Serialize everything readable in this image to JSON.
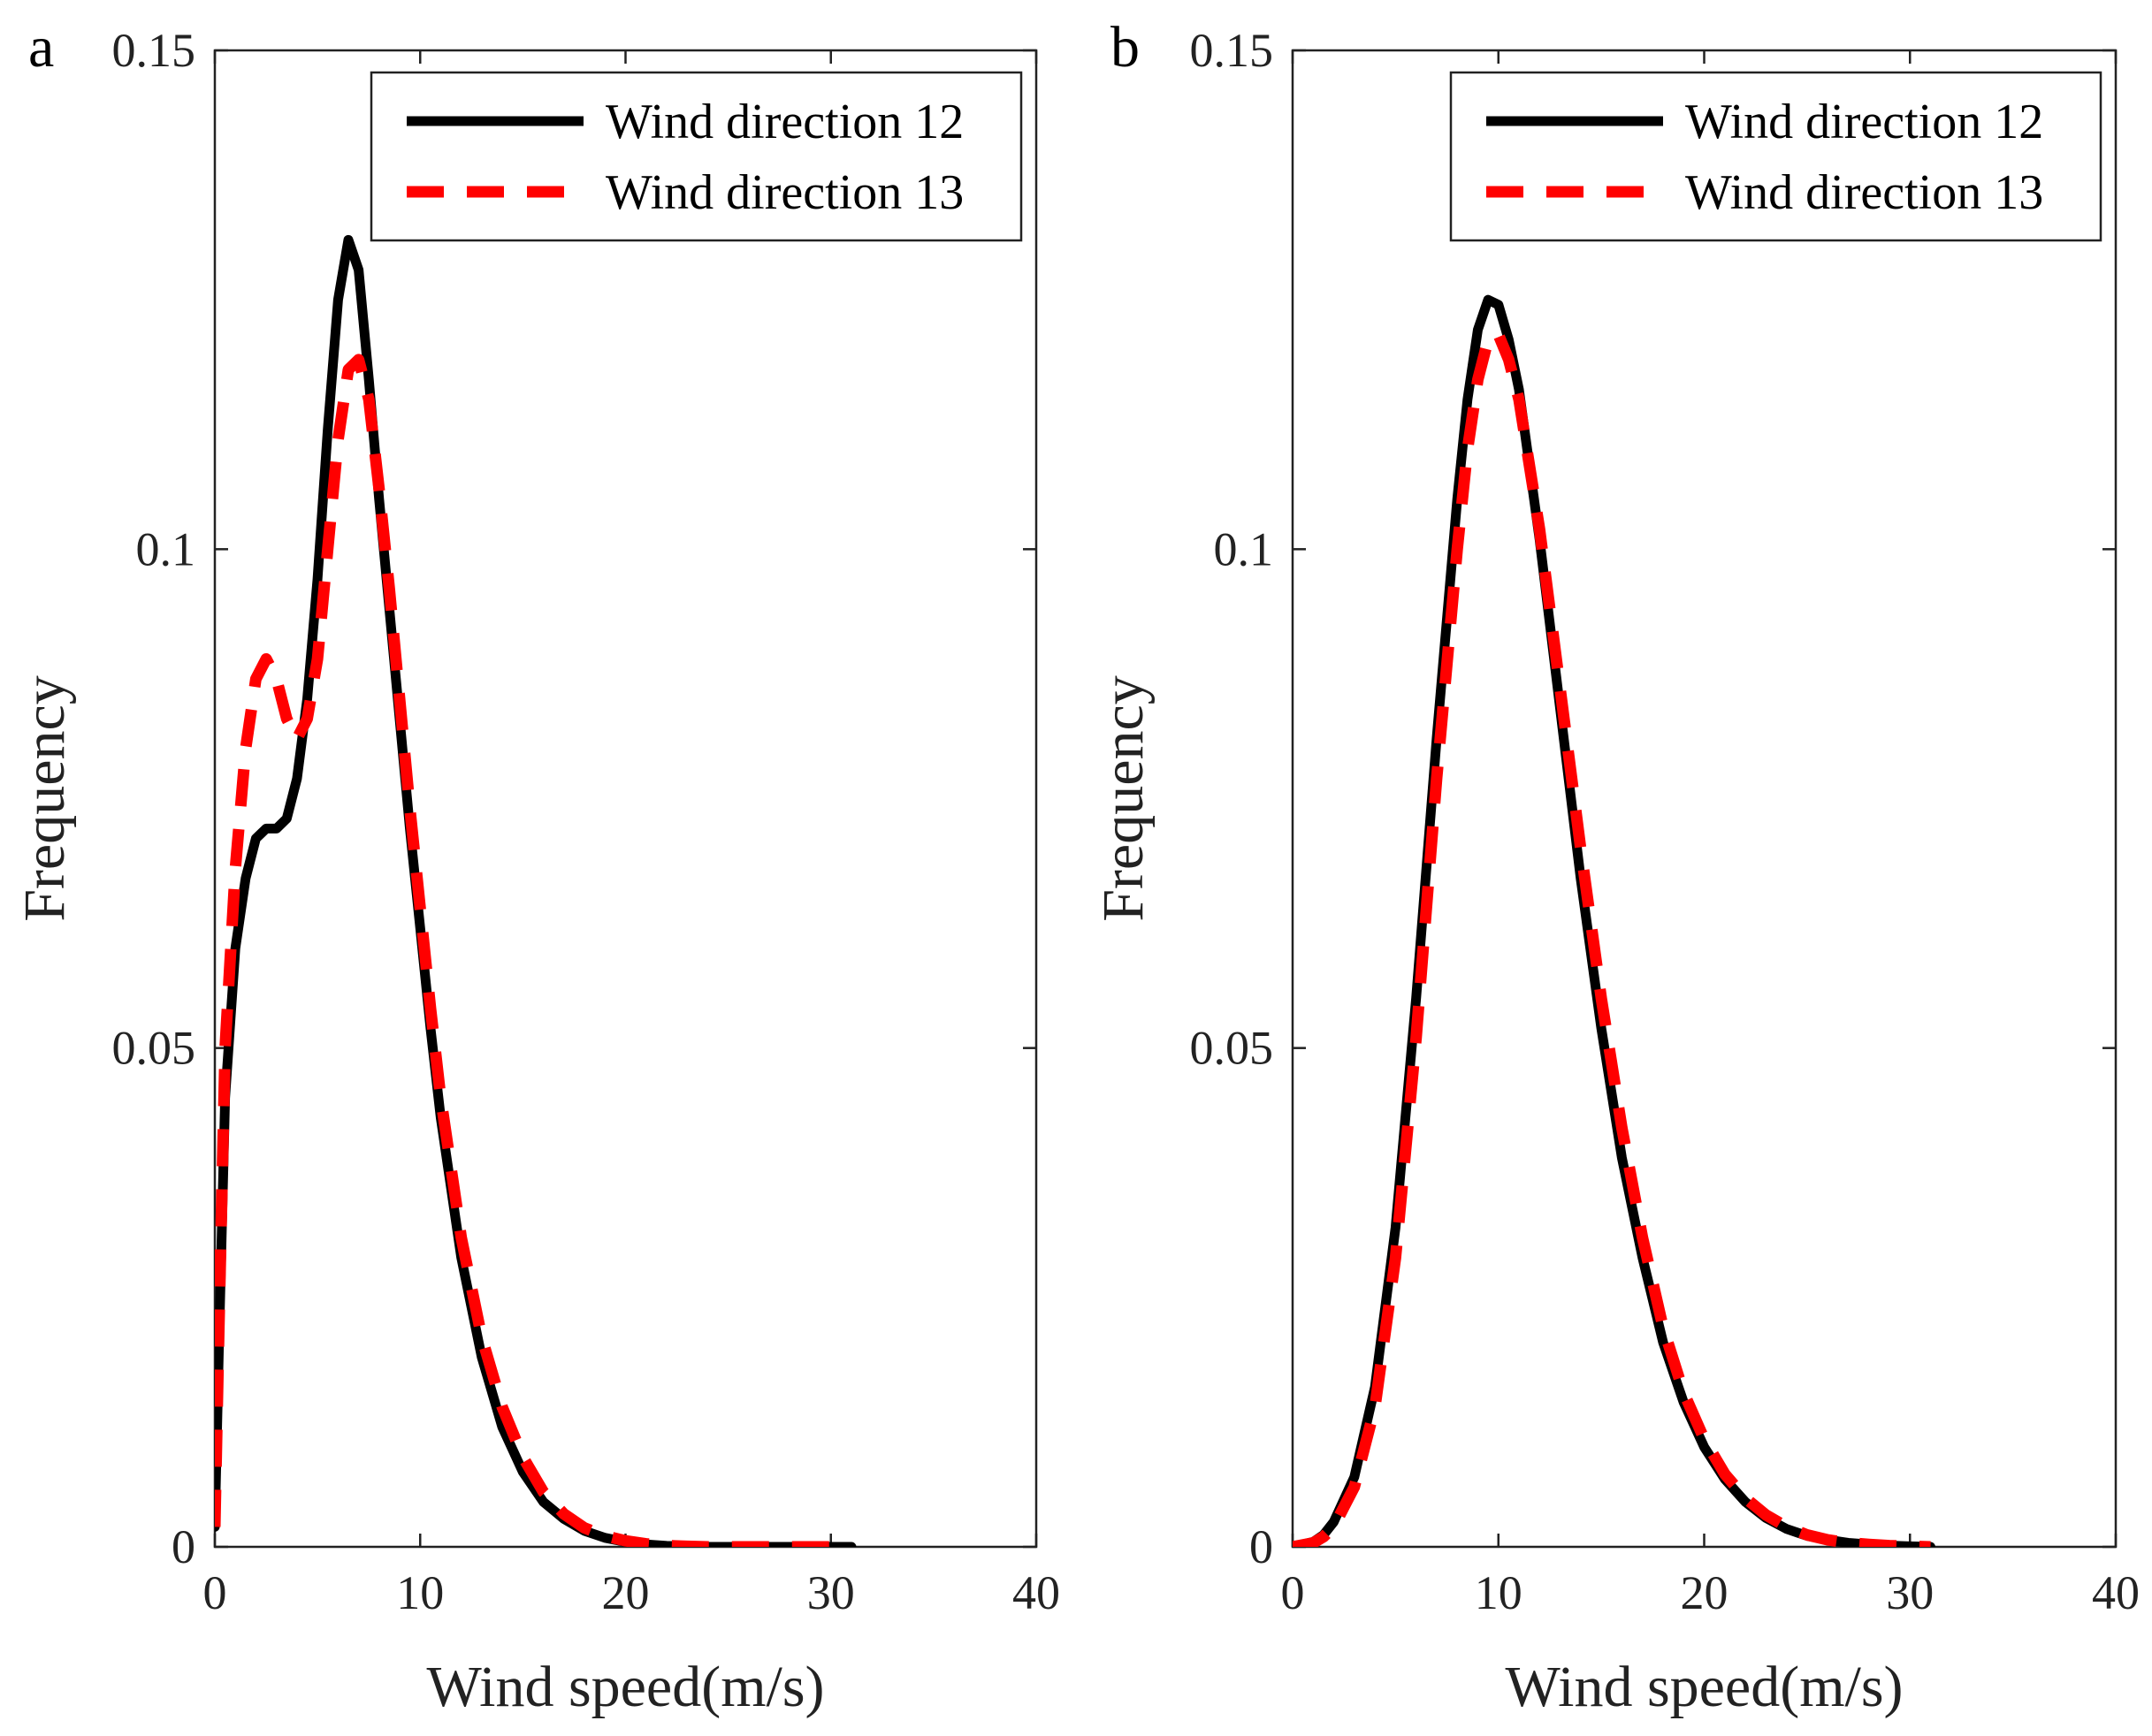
{
  "chart_data": [
    {
      "type": "line",
      "panel_label": "a",
      "xlabel": "Wind speed(m/s)",
      "ylabel": "Frequency",
      "xlim": [
        0,
        40
      ],
      "ylim": [
        0,
        0.15
      ],
      "xticks": [
        0,
        10,
        20,
        30,
        40
      ],
      "xtick_labels": [
        "0",
        "10",
        "20",
        "30",
        "40"
      ],
      "yticks": [
        0,
        0.05,
        0.1,
        0.15
      ],
      "ytick_labels": [
        "0",
        "0.05",
        "0.1",
        "0.15"
      ],
      "legend_position": "top-right",
      "series": [
        {
          "name": "Wind direction 12",
          "color": "#000000",
          "style": "solid",
          "x": [
            0,
            0.2,
            0.5,
            1,
            1.5,
            2,
            2.5,
            3,
            3.5,
            4,
            4.5,
            5,
            5.5,
            6,
            6.5,
            7,
            7.5,
            8,
            8.5,
            9,
            9.5,
            10,
            10.5,
            11,
            11.5,
            12,
            13,
            14,
            15,
            16,
            17,
            18,
            19,
            20,
            21,
            22,
            23,
            24,
            26,
            28,
            30,
            31
          ],
          "y": [
            0.002,
            0.02,
            0.045,
            0.06,
            0.067,
            0.071,
            0.072,
            0.072,
            0.073,
            0.077,
            0.085,
            0.097,
            0.112,
            0.125,
            0.131,
            0.128,
            0.117,
            0.105,
            0.094,
            0.083,
            0.072,
            0.062,
            0.052,
            0.043,
            0.036,
            0.029,
            0.019,
            0.012,
            0.0075,
            0.0045,
            0.0028,
            0.0016,
            0.0009,
            0.0005,
            0.00025,
            0.0001,
            5e-05,
            0,
            0,
            0,
            0,
            0
          ]
        },
        {
          "name": "Wind direction 13",
          "color": "#ff0000",
          "style": "dashed",
          "x": [
            0,
            0.2,
            0.5,
            1,
            1.5,
            2,
            2.5,
            3,
            3.5,
            4,
            4.5,
            5,
            5.5,
            6,
            6.5,
            7,
            7.5,
            8,
            8.5,
            9,
            9.5,
            10,
            10.5,
            11,
            11.5,
            12,
            13,
            14,
            15,
            16,
            17,
            18,
            19,
            20,
            21,
            22,
            23,
            24,
            26,
            28,
            30,
            31
          ],
          "y": [
            0.002,
            0.022,
            0.05,
            0.068,
            0.08,
            0.087,
            0.089,
            0.087,
            0.083,
            0.081,
            0.083,
            0.089,
            0.1,
            0.111,
            0.118,
            0.119,
            0.115,
            0.106,
            0.096,
            0.085,
            0.074,
            0.064,
            0.054,
            0.045,
            0.038,
            0.031,
            0.021,
            0.014,
            0.009,
            0.0055,
            0.0033,
            0.0019,
            0.0011,
            0.0006,
            0.0003,
            0.00012,
            5e-05,
            0,
            0,
            0,
            0,
            0
          ]
        }
      ]
    },
    {
      "type": "line",
      "panel_label": "b",
      "xlabel": "Wind speed(m/s)",
      "ylabel": "Frequency",
      "xlim": [
        0,
        40
      ],
      "ylim": [
        0,
        0.15
      ],
      "xticks": [
        0,
        10,
        20,
        30,
        40
      ],
      "xtick_labels": [
        "0",
        "10",
        "20",
        "30",
        "40"
      ],
      "yticks": [
        0,
        0.05,
        0.1,
        0.15
      ],
      "ytick_labels": [
        "0",
        "0.05",
        "0.1",
        "0.15"
      ],
      "legend_position": "top-right",
      "series": [
        {
          "name": "Wind direction 12",
          "color": "#000000",
          "style": "solid",
          "x": [
            0,
            1,
            1.5,
            2,
            3,
            4,
            5,
            6,
            7,
            8,
            8.5,
            9,
            9.5,
            10,
            10.5,
            11,
            12,
            13,
            14,
            15,
            16,
            17,
            18,
            19,
            20,
            21,
            22,
            23,
            24,
            25,
            26,
            27,
            28,
            29,
            30,
            31
          ],
          "y": [
            0,
            0.0005,
            0.0012,
            0.0025,
            0.007,
            0.016,
            0.032,
            0.055,
            0.081,
            0.105,
            0.115,
            0.122,
            0.125,
            0.1245,
            0.121,
            0.116,
            0.101,
            0.084,
            0.067,
            0.052,
            0.039,
            0.029,
            0.0205,
            0.0145,
            0.01,
            0.0068,
            0.0045,
            0.0029,
            0.0018,
            0.0011,
            0.0007,
            0.0004,
            0.00025,
            0.00012,
            5e-05,
            0
          ]
        },
        {
          "name": "Wind direction 13",
          "color": "#ff0000",
          "style": "dashed",
          "x": [
            0,
            1,
            1.5,
            2,
            3,
            4,
            5,
            6,
            7,
            8,
            8.5,
            9,
            9.5,
            10,
            10.5,
            11,
            12,
            13,
            14,
            15,
            16,
            17,
            18,
            19,
            20,
            21,
            22,
            23,
            24,
            25,
            26,
            27,
            28,
            29,
            30,
            31
          ],
          "y": [
            0,
            0.0004,
            0.001,
            0.002,
            0.006,
            0.014,
            0.029,
            0.051,
            0.077,
            0.1,
            0.11,
            0.117,
            0.121,
            0.1215,
            0.119,
            0.115,
            0.102,
            0.086,
            0.07,
            0.055,
            0.042,
            0.031,
            0.022,
            0.0155,
            0.0108,
            0.0073,
            0.0049,
            0.0032,
            0.002,
            0.0012,
            0.0007,
            0.0004,
            0.00025,
            0.00012,
            5e-05,
            0
          ]
        }
      ]
    }
  ]
}
